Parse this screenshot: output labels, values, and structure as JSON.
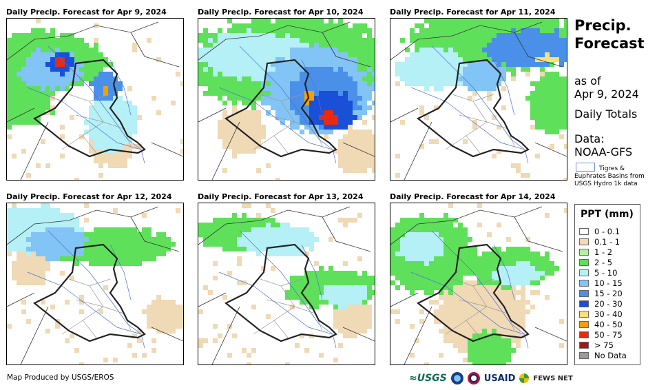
{
  "panels": [
    {
      "title": "Daily Precip. Forecast for Apr 9, 2024"
    },
    {
      "title": "Daily Precip. Forecast for Apr 10, 2024"
    },
    {
      "title": "Daily Precip. Forecast for Apr 11, 2024"
    },
    {
      "title": "Daily Precip. Forecast for Apr 12, 2024"
    },
    {
      "title": "Daily Precip. Forecast for Apr 13, 2024"
    },
    {
      "title": "Daily Precip. Forecast for Apr 14, 2024"
    }
  ],
  "sidebar": {
    "title_line1": "Precip.",
    "title_line2": "Forecast",
    "asof_line1": "as of",
    "asof_line2": "Apr 9, 2024",
    "daily_totals": "Daily Totals",
    "data_label": "Data:",
    "data_source": "NOAA-GFS",
    "basin_line1": "Tigres &",
    "basin_line2": "Euphrates Basins from",
    "basin_line3": "USGS Hydro 1k data"
  },
  "legend": {
    "title": "PPT (mm)",
    "items": [
      {
        "label": "0 - 0.1",
        "color": "#ffffff"
      },
      {
        "label": "0.1 - 1",
        "color": "#f0d9b5"
      },
      {
        "label": "1 - 2",
        "color": "#b4f0a0"
      },
      {
        "label": "2 - 5",
        "color": "#5fe05a"
      },
      {
        "label": "5 - 10",
        "color": "#b4f0f5"
      },
      {
        "label": "10 - 15",
        "color": "#82c4f5"
      },
      {
        "label": "15 - 20",
        "color": "#4a90e8"
      },
      {
        "label": "20 - 30",
        "color": "#1a4fd8"
      },
      {
        "label": "30 - 40",
        "color": "#f8e07a"
      },
      {
        "label": "40 - 50",
        "color": "#f5a000"
      },
      {
        "label": "50 - 75",
        "color": "#e82a10"
      },
      {
        "label": "> 75",
        "color": "#a01818"
      },
      {
        "label": "No Data",
        "color": "#999999"
      }
    ]
  },
  "footer": {
    "produced_by": "Map Produced by USGS/EROS"
  },
  "logos": {
    "usgs": "≈USGS",
    "usaid": "USAID",
    "fews": "FEWS NET"
  }
}
